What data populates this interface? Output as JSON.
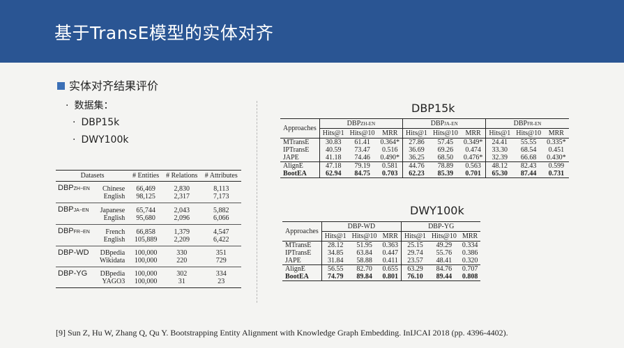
{
  "header": {
    "title": "基于TransE模型的实体对齐"
  },
  "main_bullet": "实体对齐结果评价",
  "sub_bullets": [
    "数据集：",
    "DBP15k",
    "DWY100k"
  ],
  "datasets_table": {
    "headers": [
      "Datasets",
      "# Entities",
      "# Relations",
      "# Attributes"
    ],
    "groups": [
      {
        "name": "DBP",
        "sub": "ZH−EN",
        "rows": [
          [
            "Chinese",
            "66,469",
            "2,830",
            "8,113"
          ],
          [
            "English",
            "98,125",
            "2,317",
            "7,173"
          ]
        ]
      },
      {
        "name": "DBP",
        "sub": "JA−EN",
        "rows": [
          [
            "Japanese",
            "65,744",
            "2,043",
            "5,882"
          ],
          [
            "English",
            "95,680",
            "2,096",
            "6,066"
          ]
        ]
      },
      {
        "name": "DBP",
        "sub": "FR−EN",
        "rows": [
          [
            "French",
            "66,858",
            "1,379",
            "4,547"
          ],
          [
            "English",
            "105,889",
            "2,209",
            "6,422"
          ]
        ]
      },
      {
        "name": "DBP-WD",
        "sub": "",
        "rows": [
          [
            "DBpedia",
            "100,000",
            "330",
            "351"
          ],
          [
            "Wikidata",
            "100,000",
            "220",
            "729"
          ]
        ]
      },
      {
        "name": "DBP-YG",
        "sub": "",
        "rows": [
          [
            "DBpedia",
            "100,000",
            "302",
            "334"
          ],
          [
            "YAGO3",
            "100,000",
            "31",
            "23"
          ]
        ]
      }
    ]
  },
  "dbp15k": {
    "title": "DBP15k",
    "approaches_label": "Approaches",
    "groups": [
      {
        "name": "DBP",
        "sub": "ZH-EN"
      },
      {
        "name": "DBP",
        "sub": "JA-EN"
      },
      {
        "name": "DBP",
        "sub": "FR-EN"
      }
    ],
    "metrics": [
      "Hits@1",
      "Hits@10",
      "MRR"
    ],
    "rows": [
      {
        "m": "MTransE",
        "v": [
          "30.83",
          "61.41",
          "0.364*",
          "27.86",
          "57.45",
          "0.349*",
          "24.41",
          "55.55",
          "0.335*"
        ]
      },
      {
        "m": "IPTransE",
        "v": [
          "40.59",
          "73.47",
          "0.516",
          "36.69",
          "69.26",
          "0.474",
          "33.30",
          "68.54",
          "0.451"
        ]
      },
      {
        "m": "JAPE",
        "v": [
          "41.18",
          "74.46",
          "0.490*",
          "36.25",
          "68.50",
          "0.476*",
          "32.39",
          "66.68",
          "0.430*"
        ]
      },
      {
        "m": "AlignE",
        "v": [
          "47.18",
          "79.19",
          "0.581",
          "44.76",
          "78.89",
          "0.563",
          "48.12",
          "82.43",
          "0.599"
        ]
      },
      {
        "m": "BootEA",
        "v": [
          "62.94",
          "84.75",
          "0.703",
          "62.23",
          "85.39",
          "0.701",
          "65.30",
          "87.44",
          "0.731"
        ],
        "bold": true
      }
    ]
  },
  "dwy100k": {
    "title": "DWY100k",
    "approaches_label": "Approaches",
    "groups": [
      "DBP-WD",
      "DBP-YG"
    ],
    "metrics": [
      "Hits@1",
      "Hits@10",
      "MRR"
    ],
    "rows": [
      {
        "m": "MTransE",
        "v": [
          "28.12",
          "51.95",
          "0.363",
          "25.15",
          "49.29",
          "0.334"
        ]
      },
      {
        "m": "IPTransE",
        "v": [
          "34.85",
          "63.84",
          "0.447",
          "29.74",
          "55.76",
          "0.386"
        ]
      },
      {
        "m": "JAPE",
        "v": [
          "31.84",
          "58.88",
          "0.411",
          "23.57",
          "48.41",
          "0.320"
        ]
      },
      {
        "m": "AlignE",
        "v": [
          "56.55",
          "82.70",
          "0.655",
          "63.29",
          "84.76",
          "0.707"
        ]
      },
      {
        "m": "BootEA",
        "v": [
          "74.79",
          "89.84",
          "0.801",
          "76.10",
          "89.44",
          "0.808"
        ],
        "bold": true
      }
    ]
  },
  "footnote": "[9] Sun Z, Hu W, Zhang Q, Qu Y. Bootstrapping Entity Alignment with Knowledge Graph Embedding. InIJCAI 2018 (pp. 4396-4402)."
}
